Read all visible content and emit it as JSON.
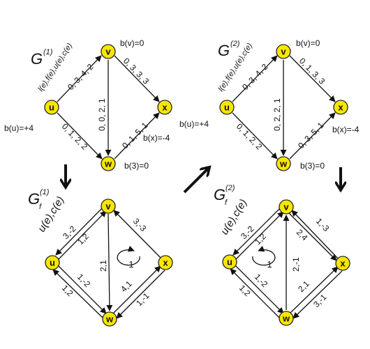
{
  "panels": [
    {
      "id": "g1",
      "title": "G",
      "title_sup": "(1)",
      "header": "l(e),f(e),u(e),c(e)",
      "info": {
        "bv": "b(v)=0",
        "bu": "b(u)=+4",
        "bx": "b(x)=-4",
        "bw": "b(3)=0"
      },
      "nodes": {
        "u": "u",
        "v": "v",
        "x": "x",
        "w": "w"
      },
      "edges": {
        "uv": "0, 3, 4, 2",
        "vw": "0, 0, 2, 1",
        "uw": "0, 1, 2, 2",
        "wx": "0, 1, 5, 1",
        "vx": "0, 3, 3, 3"
      }
    },
    {
      "id": "g2",
      "title": "G",
      "title_sup": "(2)",
      "header": "l(e),f(e),u(e),c(e)",
      "info": {
        "bv": "b(v)=0",
        "bu": "b(u)=+4",
        "bx": "b(x)=-4",
        "bw": "b(3)=0"
      },
      "nodes": {
        "u": "u",
        "v": "v",
        "x": "x",
        "w": "w"
      },
      "edges": {
        "uv": "0, 3, 4, 2",
        "vw": "0, 2, 2, 1",
        "uw": "0, 1, 2, 2",
        "wx": "0, 3, 5, 1",
        "vx": "0, 1, 3, 3"
      }
    },
    {
      "id": "gf1",
      "title": "G",
      "title_sub": "f",
      "title_sup": "(1)",
      "header": "u(e),c(e)",
      "nodes": {
        "u": "u",
        "v": "v",
        "x": "x",
        "w": "w"
      },
      "cycle": "-1",
      "edges": {
        "vu": "3,-2",
        "uv": "1,2",
        "vw": "2,1",
        "wu": "1,-2",
        "uw": "1,2",
        "xv": "3,-3",
        "wx": "4,1",
        "xw": "1,-1"
      }
    },
    {
      "id": "gf2",
      "title": "G",
      "title_sub": "f",
      "title_sup": "(2)",
      "header": "u(e),c(e)",
      "nodes": {
        "u": "u",
        "v": "v",
        "x": "x",
        "w": "w"
      },
      "cycle": "-1",
      "edges": {
        "vu": "3,-2",
        "uv": "1,2",
        "vw": "2,-1",
        "wu": "1,-2",
        "uw": "1,2",
        "xv": "1,-3",
        "vx": "2,4",
        "wx": "2,1",
        "xw": "3,-1"
      }
    }
  ]
}
